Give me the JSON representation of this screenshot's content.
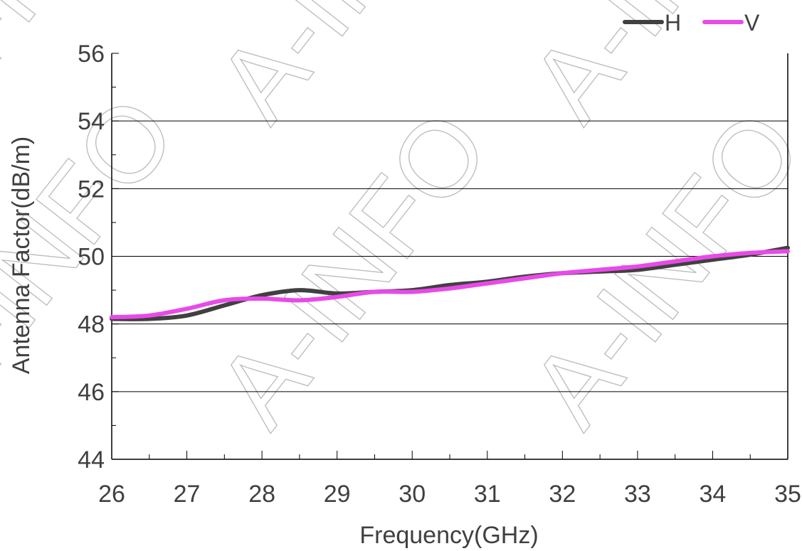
{
  "chart_data": {
    "type": "line",
    "title": "",
    "xlabel": "Frequency(GHz)",
    "ylabel": "Antenna Factor(dB/m)",
    "xlim": [
      26,
      35
    ],
    "ylim": [
      44,
      56
    ],
    "xticks": [
      26,
      27,
      28,
      29,
      30,
      31,
      32,
      33,
      34,
      35
    ],
    "xticks_minor_step": 0.5,
    "yticks": [
      44,
      46,
      48,
      50,
      52,
      54,
      56
    ],
    "yticks_minor_step": 1,
    "grid": "horizontal-major",
    "legend": "top-right",
    "watermark": "A-INFO",
    "series": [
      {
        "name": "H",
        "color": "#404040",
        "x": [
          26,
          26.5,
          27,
          27.5,
          28,
          28.5,
          29,
          29.5,
          30,
          30.5,
          31,
          31.5,
          32,
          32.5,
          33,
          33.5,
          34,
          34.5,
          35
        ],
        "y": [
          48.15,
          48.15,
          48.25,
          48.55,
          48.85,
          49.0,
          48.9,
          48.95,
          49.0,
          49.15,
          49.25,
          49.4,
          49.5,
          49.55,
          49.6,
          49.75,
          49.9,
          50.05,
          50.25
        ]
      },
      {
        "name": "V",
        "color": "#E84AE8",
        "x": [
          26,
          26.5,
          27,
          27.5,
          28,
          28.5,
          29,
          29.5,
          30,
          30.5,
          31,
          31.5,
          32,
          32.5,
          33,
          33.5,
          34,
          34.5,
          35
        ],
        "y": [
          48.2,
          48.25,
          48.45,
          48.7,
          48.75,
          48.7,
          48.8,
          48.95,
          48.95,
          49.05,
          49.2,
          49.35,
          49.5,
          49.6,
          49.7,
          49.85,
          50.0,
          50.1,
          50.15
        ]
      }
    ]
  }
}
